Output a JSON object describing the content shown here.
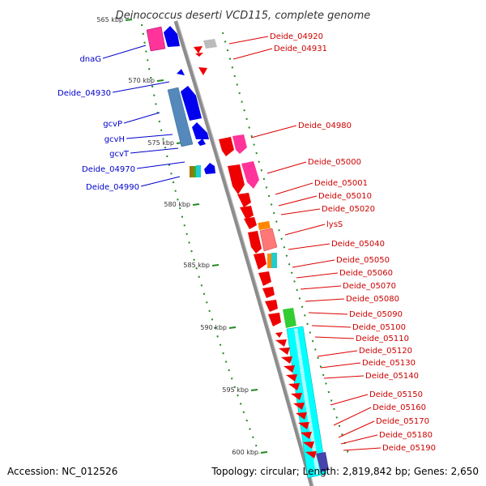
{
  "title": "Deinococcus deserti VCD115, complete genome",
  "footer": {
    "accession": "Accession: NC_012526",
    "summary": "Topology: circular; Length: 2,819,842 bp; Genes: 2,650"
  },
  "colors": {
    "backbone": "#8c8c8c",
    "left_labels": "#0000cc",
    "right_labels": "#cc0000",
    "ticks": "#228822"
  },
  "kbp_ticks": [
    "565 kbp",
    "570 kbp",
    "575 kbp",
    "580 kbp",
    "585 kbp",
    "590 kbp",
    "595 kbp",
    "600 kbp"
  ],
  "left_labels": [
    "dnaG",
    "Deide_04930",
    "gcvP",
    "gcvH",
    "gcvT",
    "Deide_04970",
    "Deide_04990"
  ],
  "right_labels": [
    "Deide_04920",
    "Deide_04931",
    "Deide_04980",
    "Deide_05000",
    "Deide_05001",
    "Deide_05010",
    "Deide_05020",
    "lysS",
    "Deide_05040",
    "Deide_05050",
    "Deide_05060",
    "Deide_05070",
    "Deide_05080",
    "Deide_05090",
    "Deide_05100",
    "Deide_05110",
    "Deide_05120",
    "Deide_05130",
    "Deide_05140",
    "Deide_05150",
    "Deide_05160",
    "Deide_05170",
    "Deide_05180",
    "Deide_05190"
  ]
}
